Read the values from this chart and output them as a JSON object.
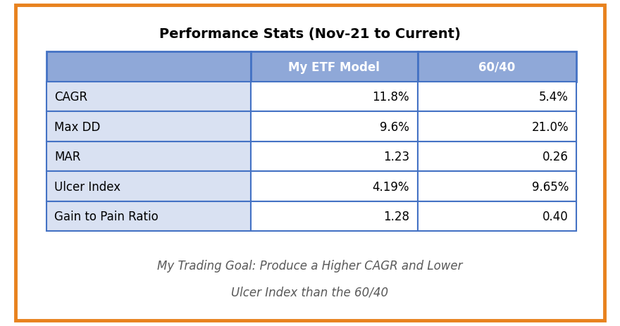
{
  "title": "Performance Stats (Nov-21 to Current)",
  "col_headers": [
    "",
    "My ETF Model",
    "60/40"
  ],
  "rows": [
    [
      "CAGR",
      "11.8%",
      "5.4%"
    ],
    [
      "Max DD",
      "9.6%",
      "21.0%"
    ],
    [
      "MAR",
      "1.23",
      "0.26"
    ],
    [
      "Ulcer Index",
      "4.19%",
      "9.65%"
    ],
    [
      "Gain to Pain Ratio",
      "1.28",
      "0.40"
    ]
  ],
  "footer_line1": "My Trading Goal: Produce a Higher CAGR and Lower",
  "footer_line2": "Ulcer Index than the 60/40",
  "outer_border_color": "#E8821E",
  "inner_border_color": "#4472C4",
  "header_bg_color": "#8FA8D8",
  "header_text_color": "#FFFFFF",
  "row_label_bg_color": "#D9E1F2",
  "row_data_bg_color": "#FFFFFF",
  "title_fontsize": 14,
  "header_fontsize": 12,
  "cell_fontsize": 12,
  "footer_fontsize": 12,
  "background_color": "#FFFFFF",
  "footer_color": "#595959"
}
